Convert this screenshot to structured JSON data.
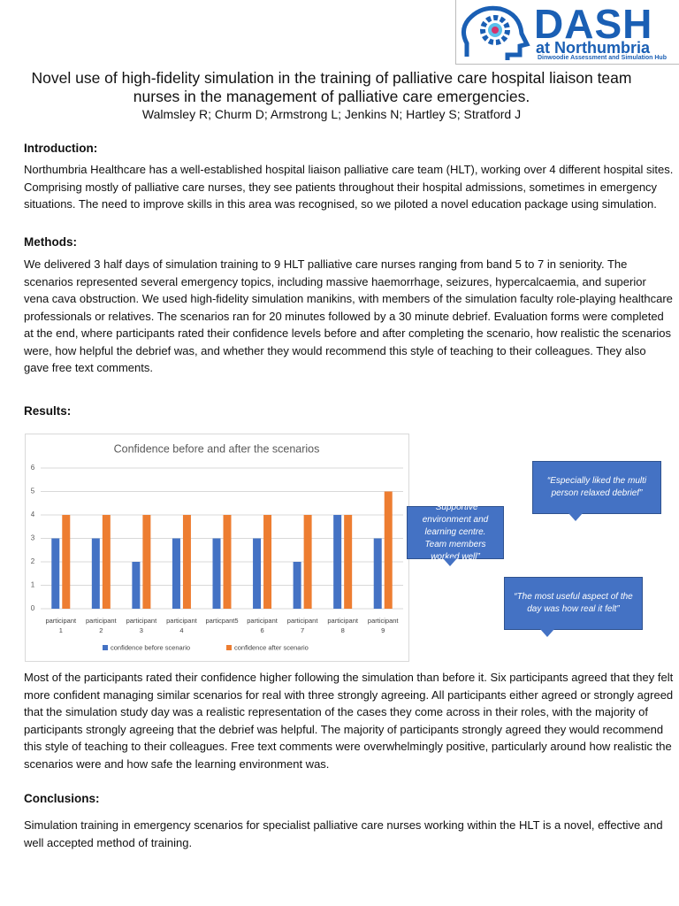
{
  "logo": {
    "name": "DASH",
    "subtitle": "at Northumbria",
    "tagline": "Dinwoodie Assessment and Simulation Hub"
  },
  "header": {
    "title": "Novel use of high-fidelity simulation in the training of palliative care hospital liaison team nurses in the management of palliative care emergencies.",
    "authors": "Walmsley R; Churm D; Armstrong L; Jenkins N; Hartley S; Stratford J"
  },
  "sections": [
    {
      "heading": "Introduction:",
      "text": "Northumbria Healthcare has a well-established hospital liaison palliative care team (HLT), working over 4 different hospital sites. Comprising mostly of palliative care nurses, they see patients throughout their hospital admissions, sometimes in emergency situations. The need to improve skills in this area was recognised, so we piloted a novel education package using simulation."
    },
    {
      "heading": "Methods:",
      "text": "We delivered 3 half days of simulation training to 9 HLT palliative care nurses ranging from band 5 to 7 in seniority. The scenarios represented several emergency topics, including massive haemorrhage, seizures, hypercalcaemia, and superior vena cava obstruction. We used high-fidelity simulation manikins, with members of the simulation faculty role-playing healthcare professionals or relatives. The scenarios ran for 20 minutes followed by a 30 minute debrief. Evaluation forms were completed at the end, where participants rated their confidence levels before and after completing the scenario, how realistic the scenarios were, how helpful the debrief was, and whether they would recommend this style of teaching to their colleagues. They also gave free text comments."
    },
    {
      "heading": "Results:",
      "text": "Most of the participants rated their confidence higher following the simulation than before it. Six participants agreed that they felt more confident managing similar scenarios for real with three strongly agreeing. All participants either agreed or strongly agreed that the simulation study day was a realistic representation of the cases they come across in their roles, with the majority of participants strongly agreeing that the debrief was helpful. The majority of participants strongly agreed they would recommend this style of teaching to their colleagues. Free text comments were overwhelmingly positive, particularly around how realistic the scenarios were and how safe the learning environment was."
    },
    {
      "heading": "Conclusions:",
      "text": "Simulation training in emergency scenarios for specialist palliative care nurses working within the HLT is a novel, effective and well accepted method of training."
    }
  ],
  "quotes": [
    "“Especially liked the multi person relaxed debrief”",
    "“Supportive environment and learning centre. Team members worked well”",
    "“The most useful aspect of the day was how real it felt”"
  ],
  "chart_data": {
    "type": "bar",
    "title": "Confidence before and after the scenarios",
    "categories": [
      "participant 1",
      "participant 2",
      "participant 3",
      "participant 4",
      "particpant5",
      "participant 6",
      "participant 7",
      "participant 8",
      "participant 9"
    ],
    "series": [
      {
        "name": "confidence before scenario",
        "color": "#4472c4",
        "values": [
          3,
          3,
          2,
          3,
          3,
          3,
          2,
          4,
          3
        ]
      },
      {
        "name": "confidence after scenario",
        "color": "#ed7d31",
        "values": [
          4,
          4,
          4,
          4,
          4,
          4,
          4,
          4,
          5
        ]
      }
    ],
    "ylim": [
      0,
      6
    ],
    "yticks": [
      0,
      1,
      2,
      3,
      4,
      5,
      6
    ],
    "grid": true,
    "legend": "bottom"
  }
}
